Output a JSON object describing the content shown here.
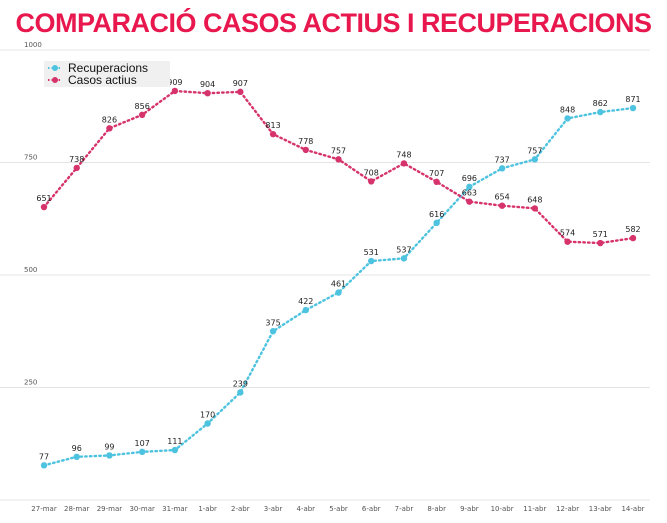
{
  "chart_data": {
    "type": "line",
    "title": "COMPARACIÓ CASOS ACTIUS I RECUPERACIONS",
    "xlabel": "",
    "ylabel": "",
    "ylim": [
      0,
      1000
    ],
    "yticks": [
      "1000",
      "750",
      "500",
      "250"
    ],
    "grid": true,
    "legend_position": "top-left",
    "categories": [
      "27-mar",
      "28-mar",
      "29-mar",
      "30-mar",
      "31-mar",
      "1-abr",
      "2-abr",
      "3-abr",
      "4-abr",
      "5-abr",
      "6-abr",
      "7-abr",
      "8-abr",
      "9-abr",
      "10-abr",
      "11-abr",
      "12-abr",
      "13-abr",
      "14-abr"
    ],
    "series": [
      {
        "name": "Recuperacions",
        "color": "#4ec3e0",
        "values": [
          77,
          96,
          99,
          107,
          111,
          170,
          239,
          375,
          422,
          461,
          531,
          537,
          616,
          696,
          737,
          757,
          848,
          862,
          871
        ]
      },
      {
        "name": "Casos actius",
        "color": "#d6336c",
        "values": [
          651,
          738,
          826,
          856,
          909,
          904,
          907,
          813,
          778,
          757,
          708,
          748,
          707,
          663,
          654,
          648,
          574,
          571,
          582
        ]
      }
    ],
    "title_color": "#e8184e"
  }
}
